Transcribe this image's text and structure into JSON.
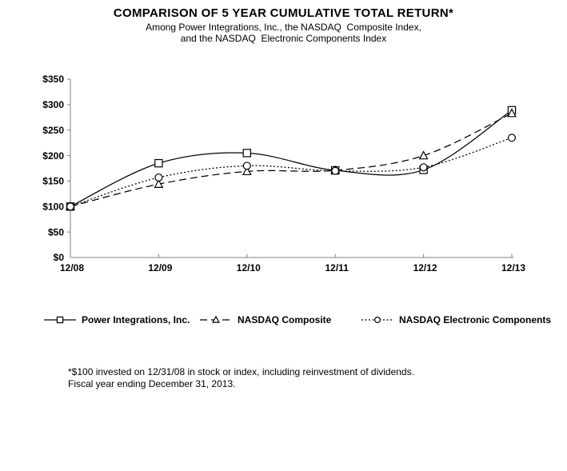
{
  "title": "COMPARISON OF 5 YEAR CUMULATIVE TOTAL RETURN*",
  "subtitle_line1": "Among Power Integrations, Inc., the NASDAQ  Composite Index,",
  "subtitle_line2": "and the NASDAQ  Electronic Components Index",
  "footnote_line1": "*$100 invested on 12/31/08 in stock or index, including reinvestment of dividends.",
  "footnote_line2": "Fiscal year ending December 31, 2013.",
  "colors": {
    "series_line": "#000000",
    "axis": "#808080",
    "marker_fill": "#ffffff",
    "text": "#000000",
    "background": "#ffffff"
  },
  "chart_data": {
    "type": "line",
    "title": "COMPARISON OF 5 YEAR CUMULATIVE TOTAL RETURN*",
    "xlabel": "",
    "ylabel": "",
    "categories": [
      "12/08",
      "12/09",
      "12/10",
      "12/11",
      "12/12",
      "12/13"
    ],
    "series": [
      {
        "name": "Power Integrations, Inc.",
        "values": [
          100,
          185,
          205,
          171,
          172,
          289
        ],
        "line_style": "solid",
        "marker": "square"
      },
      {
        "name": "NASDAQ Composite",
        "values": [
          100,
          144,
          169,
          171,
          200,
          283
        ],
        "line_style": "dashed",
        "marker": "triangle"
      },
      {
        "name": "NASDAQ Electronic Components",
        "values": [
          100,
          157,
          180,
          170,
          177,
          235
        ],
        "line_style": "dotted",
        "marker": "circle"
      }
    ],
    "ylim": [
      0,
      350
    ],
    "y_tick_interval": 50,
    "y_tick_labels": [
      "$0",
      "$50",
      "$100",
      "$150",
      "$200",
      "$250",
      "$300",
      "$350"
    ],
    "grid": false,
    "smoothed": true,
    "legend_position": "bottom"
  }
}
